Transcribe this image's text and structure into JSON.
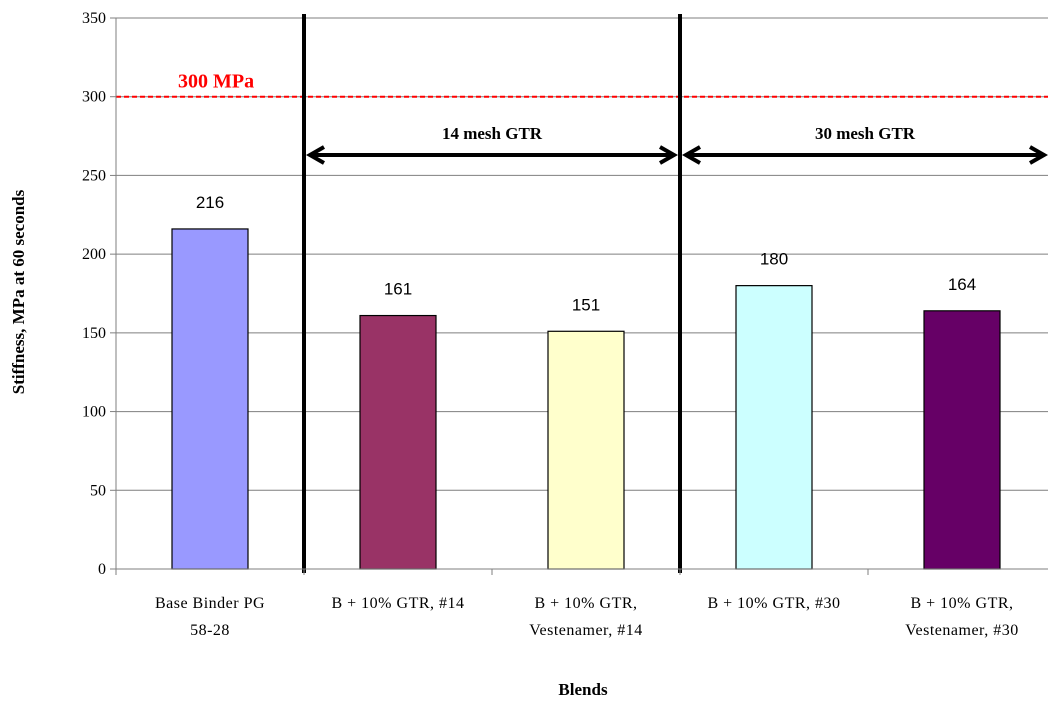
{
  "chart_data": {
    "type": "bar",
    "title": "",
    "xlabel": "Blends",
    "ylabel": "Stiffness, MPa at 60 seconds",
    "ylim": [
      0,
      350
    ],
    "yticks": [
      0,
      50,
      100,
      150,
      200,
      250,
      300,
      350
    ],
    "grid": true,
    "categories": [
      [
        "Base Binder PG",
        "58-28"
      ],
      [
        "B + 10% GTR, #14"
      ],
      [
        "B + 10% GTR,",
        "Vestenamer, #14"
      ],
      [
        "B + 10% GTR, #30"
      ],
      [
        "B + 10% GTR,",
        "Vestenamer, #30"
      ]
    ],
    "values": [
      216,
      161,
      151,
      180,
      164
    ],
    "data_labels": [
      "216",
      "161",
      "151",
      "180",
      "164"
    ],
    "bar_colors": [
      "#9999ff",
      "#993366",
      "#ffffcc",
      "#ccffff",
      "#660066"
    ],
    "reference_line": {
      "value": 300,
      "label": "300 MPa",
      "color": "#ff0000",
      "style": "dashed"
    },
    "separators_after_category_index": [
      0,
      2
    ],
    "groups": [
      {
        "label": "14 mesh GTR",
        "from_category": 1,
        "to_category": 2
      },
      {
        "label": "30 mesh GTR",
        "from_category": 3,
        "to_category": 4
      }
    ]
  }
}
